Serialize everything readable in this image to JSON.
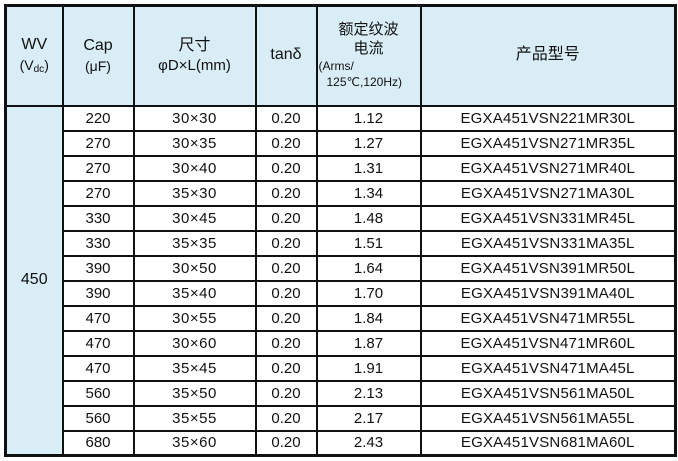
{
  "colors": {
    "header_bg": "#d9edf6",
    "border": "#111111",
    "cell_bg": "#ffffff",
    "text": "#111111"
  },
  "table": {
    "header": {
      "wv": {
        "line1": "WV",
        "line2_pre": "(V",
        "line2_sub": "dc",
        "line2_post": ")"
      },
      "cap": {
        "line1": "Cap",
        "line2": "(μF)"
      },
      "size": {
        "line1": "尺寸",
        "line2": "φD×L(mm)"
      },
      "tand": {
        "label": "tanδ"
      },
      "ripple": {
        "line1": "额定纹波",
        "line2": "电流",
        "line3": "(Arms/",
        "line4": "125℃,120Hz)"
      },
      "model": {
        "label": "产品型号"
      }
    },
    "wv_value": "450",
    "rows": [
      {
        "cap": "220",
        "size": "30×30",
        "tand": "0.20",
        "ripple": "1.12",
        "model": "EGXA451VSN221MR30L"
      },
      {
        "cap": "270",
        "size": "30×35",
        "tand": "0.20",
        "ripple": "1.27",
        "model": "EGXA451VSN271MR35L"
      },
      {
        "cap": "270",
        "size": "30×40",
        "tand": "0.20",
        "ripple": "1.31",
        "model": "EGXA451VSN271MR40L"
      },
      {
        "cap": "270",
        "size": "35×30",
        "tand": "0.20",
        "ripple": "1.34",
        "model": "EGXA451VSN271MA30L"
      },
      {
        "cap": "330",
        "size": "30×45",
        "tand": "0.20",
        "ripple": "1.48",
        "model": "EGXA451VSN331MR45L"
      },
      {
        "cap": "330",
        "size": "35×35",
        "tand": "0.20",
        "ripple": "1.51",
        "model": "EGXA451VSN331MA35L"
      },
      {
        "cap": "390",
        "size": "30×50",
        "tand": "0.20",
        "ripple": "1.64",
        "model": "EGXA451VSN391MR50L"
      },
      {
        "cap": "390",
        "size": "35×40",
        "tand": "0.20",
        "ripple": "1.70",
        "model": "EGXA451VSN391MA40L"
      },
      {
        "cap": "470",
        "size": "30×55",
        "tand": "0.20",
        "ripple": "1.84",
        "model": "EGXA451VSN471MR55L"
      },
      {
        "cap": "470",
        "size": "30×60",
        "tand": "0.20",
        "ripple": "1.87",
        "model": "EGXA451VSN471MR60L"
      },
      {
        "cap": "470",
        "size": "35×45",
        "tand": "0.20",
        "ripple": "1.91",
        "model": "EGXA451VSN471MA45L"
      },
      {
        "cap": "560",
        "size": "35×50",
        "tand": "0.20",
        "ripple": "2.13",
        "model": "EGXA451VSN561MA50L"
      },
      {
        "cap": "560",
        "size": "35×55",
        "tand": "0.20",
        "ripple": "2.17",
        "model": "EGXA451VSN561MA55L"
      },
      {
        "cap": "680",
        "size": "35×60",
        "tand": "0.20",
        "ripple": "2.43",
        "model": "EGXA451VSN681MA60L"
      }
    ]
  }
}
